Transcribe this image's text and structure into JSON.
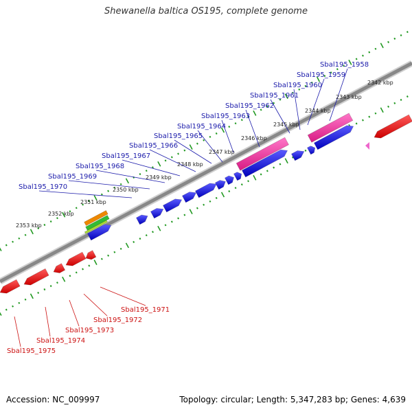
{
  "title": "Shewanella baltica OS195, complete genome",
  "footer": {
    "accession": "Accession: NC_009997",
    "summary": "Topology: circular; Length: 5,347,283 bp; Genes: 4,639"
  },
  "colors": {
    "forward_gene": "#1a1aee",
    "reverse_gene": "#ee1111",
    "rrna": "#ee3399",
    "label_top": "#1a1aaa",
    "label_bottom": "#cc1111",
    "backbone": "#888888",
    "tick": "#229922",
    "marker": "#ee66cc"
  },
  "scale_labels": [
    "2342 kbp",
    "2343 kbp",
    "2344 kbp",
    "2345 kbp",
    "2346 kbp",
    "2347 kbp",
    "2348 kbp",
    "2349 kbp",
    "2350 kbp",
    "2351 kbp",
    "2352 kbp",
    "2353 kbp"
  ],
  "top_gene_labels": [
    "Sbal195_1958",
    "Sbal195_1959",
    "Sbal195_1960",
    "Sbal195_1961",
    "Sbal195_1962",
    "Sbal195_1963",
    "Sbal195_1964",
    "Sbal195_1965",
    "Sbal195_1966",
    "Sbal195_1967",
    "Sbal195_1968",
    "Sbal195_1969",
    "Sbal195_1970"
  ],
  "bottom_gene_labels": [
    "Sbal195_1971",
    "Sbal195_1972",
    "Sbal195_1973",
    "Sbal195_1974",
    "Sbal195_1975"
  ]
}
